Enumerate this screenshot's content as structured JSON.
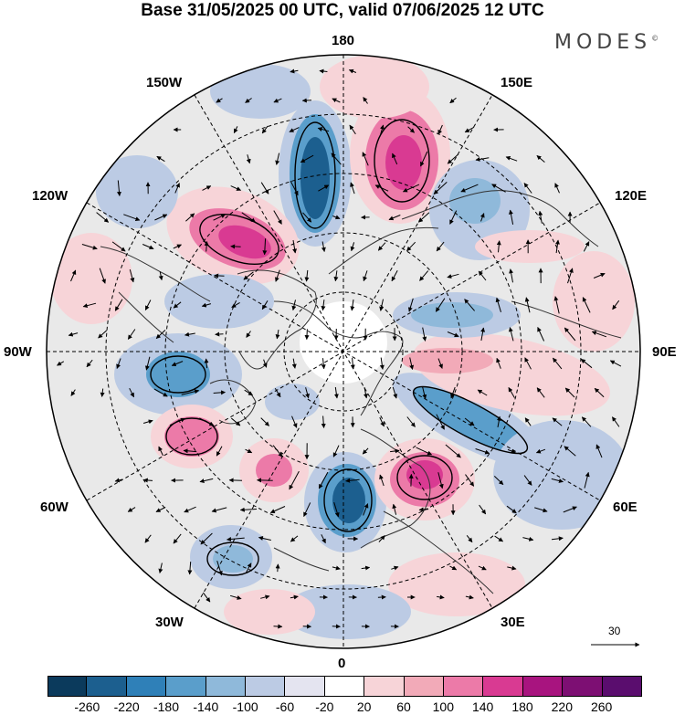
{
  "title": "Base 31/05/2025 00 UTC, valid 07/06/2025 12 UTC",
  "brand": "MODES",
  "brand_mark": "©",
  "longitude_labels": {
    "top": "180",
    "bottom": "0",
    "left": "90W",
    "right": "90E",
    "upper_left_1": "150W",
    "upper_left_2": "120W",
    "upper_right_1": "150E",
    "upper_right_2": "120E",
    "lower_left_1": "60W",
    "lower_left_2": "30W",
    "lower_right_1": "60E",
    "lower_right_2": "30E"
  },
  "vector_scale_label": "30",
  "colorbar": {
    "ticks": [
      "-260",
      "-220",
      "-180",
      "-140",
      "-100",
      "-60",
      "-20",
      "20",
      "60",
      "100",
      "140",
      "180",
      "220",
      "260"
    ],
    "colors": [
      "#0b3a5c",
      "#1c5f8f",
      "#2f80b8",
      "#5a9ecb",
      "#8fb9da",
      "#bccbe4",
      "#e4e4f0",
      "#ffffff",
      "#f7d4d8",
      "#f2aab8",
      "#ec7aa8",
      "#d93a92",
      "#a8147f",
      "#7d0f73",
      "#5a0d6e"
    ]
  },
  "anomaly_colors": {
    "strong_negative": "#1c5f8f",
    "negative": "#5a9ecb",
    "weak_negative": "#bccbe4",
    "neutral": "#e9e9e9",
    "weak_positive": "#f7d4d8",
    "positive": "#ec7aa8",
    "strong_positive": "#d93a92"
  }
}
